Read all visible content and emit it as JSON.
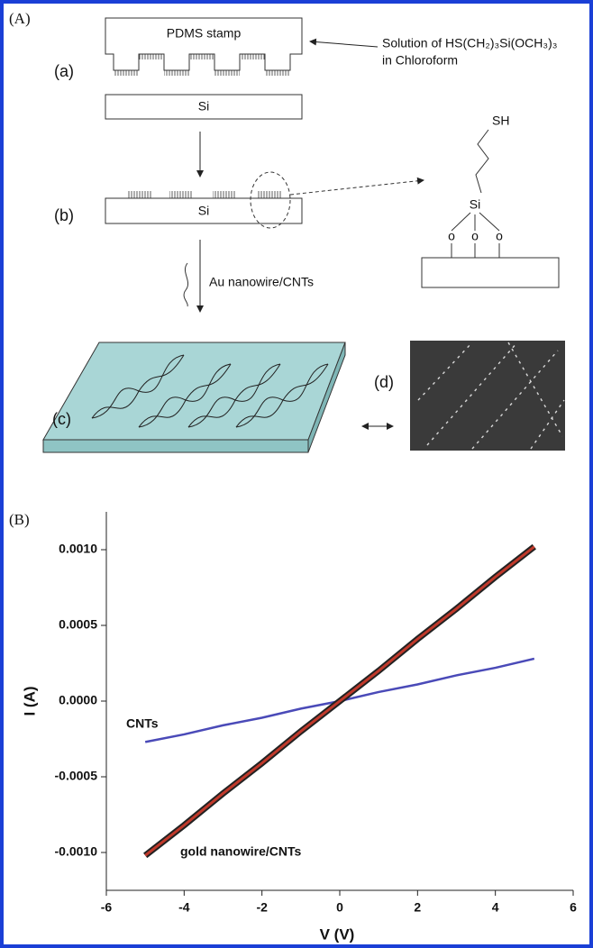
{
  "panel_a": {
    "label": "(A)",
    "stamp_label": "PDMS stamp",
    "solution_label": [
      "Solution of HS(CH₂)₃Si(OCH₃)₃",
      "in Chloroform"
    ],
    "step_a": "(a)",
    "substrate_a": "Si",
    "step_b": "(b)",
    "substrate_b": "Si",
    "molecule": {
      "thiol": "SH",
      "silicon": "Si",
      "oxygens": [
        "o",
        "o",
        "o"
      ]
    },
    "deposit_label": "Au nanowire/CNTs",
    "step_c": "(c)",
    "step_d": "(d)"
  },
  "chart_data": {
    "type": "line",
    "panel_label": "(B)",
    "x_label": "V (V)",
    "y_label": "I (A)",
    "x": [
      -5,
      -4,
      -3,
      -2,
      -1,
      0,
      1,
      2,
      3,
      4,
      5
    ],
    "series": [
      {
        "name": "CNTs",
        "color": "#4a4ab8",
        "values": [
          -0.00027,
          -0.00022,
          -0.00016,
          -0.00011,
          -5e-05,
          0.0,
          6e-05,
          0.00011,
          0.00017,
          0.00022,
          0.00028
        ]
      },
      {
        "name": "gold nanowire/CNTs",
        "color": "#c0392b",
        "values": [
          -0.00102,
          -0.00082,
          -0.00061,
          -0.00041,
          -0.0002,
          0.0,
          0.0002,
          0.00041,
          0.00061,
          0.00082,
          0.00102
        ]
      }
    ],
    "xlim": [
      -6,
      6
    ],
    "xticks": [
      -6,
      -4,
      -2,
      0,
      2,
      4,
      6
    ],
    "ylim": [
      -0.00125,
      0.00125
    ],
    "yticks": [
      {
        "value": -0.001,
        "label": "-0.0010"
      },
      {
        "value": -0.0005,
        "label": "-0.0005"
      },
      {
        "value": 0,
        "label": "0.0000"
      },
      {
        "value": 0.0005,
        "label": "0.0005"
      },
      {
        "value": 0.001,
        "label": "0.0010"
      }
    ]
  }
}
